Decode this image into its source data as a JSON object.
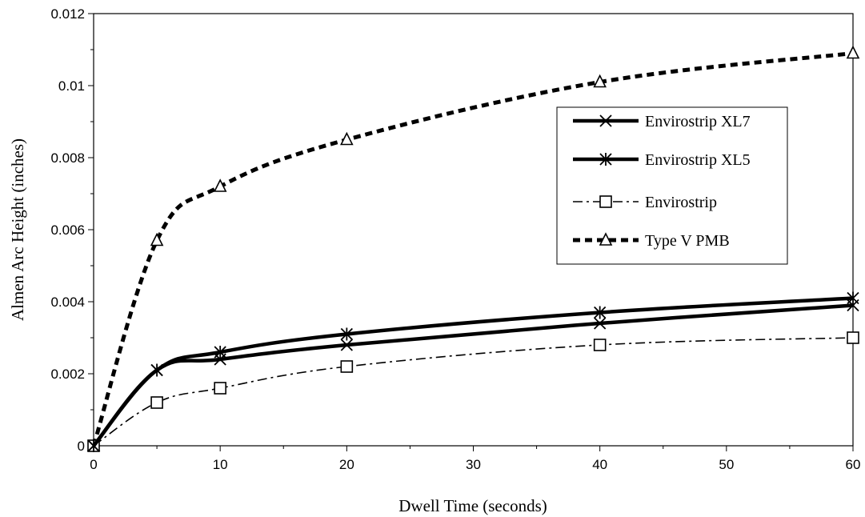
{
  "chart_data": {
    "type": "line",
    "title": "",
    "xlabel": "Dwell Time (seconds)",
    "ylabel": "Almen Arc Height (inches)",
    "xlim": [
      0,
      60
    ],
    "ylim": [
      0,
      0.012
    ],
    "x_ticks": [
      0,
      10,
      20,
      30,
      40,
      50,
      60
    ],
    "x_tick_labels": [
      "0",
      "10",
      "20",
      "30",
      "40",
      "50",
      "60"
    ],
    "y_ticks": [
      0,
      0.002,
      0.004,
      0.006,
      0.008,
      0.01,
      0.012
    ],
    "y_tick_labels": [
      "0",
      "0.002",
      "0.004",
      "0.006",
      "0.008",
      "0.01",
      "0.012"
    ],
    "grid": false,
    "legend_position": "right",
    "x": [
      0,
      5,
      10,
      20,
      40,
      60
    ],
    "series": [
      {
        "name": "Envirostrip XL7",
        "values": [
          0,
          0.0021,
          0.0024,
          0.0028,
          0.0034,
          0.0039
        ],
        "marker": "x",
        "line_style": "solid-thick",
        "color": "#000000"
      },
      {
        "name": "Envirostrip XL5",
        "values": [
          0,
          0.0021,
          0.0026,
          0.0031,
          0.0037,
          0.0041
        ],
        "marker": "asterisk",
        "line_style": "solid-thick",
        "color": "#000000"
      },
      {
        "name": "Envirostrip",
        "values": [
          0,
          0.0012,
          0.0016,
          0.0022,
          0.0028,
          0.003
        ],
        "marker": "square",
        "line_style": "dash-dot",
        "color": "#000000"
      },
      {
        "name": "Type V PMB",
        "values": [
          0,
          0.0057,
          0.0072,
          0.0085,
          0.0101,
          0.0109
        ],
        "marker": "triangle",
        "line_style": "dashed-thick",
        "color": "#000000"
      }
    ]
  }
}
